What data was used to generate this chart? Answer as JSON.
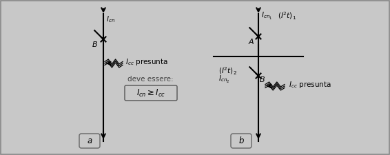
{
  "bg_color": "#c8c8c8",
  "line_color": "#000000",
  "fig_width": 5.66,
  "fig_height": 2.25,
  "panel_a_label": "a",
  "panel_b_label": "b",
  "formula_line1": "deve essere:"
}
